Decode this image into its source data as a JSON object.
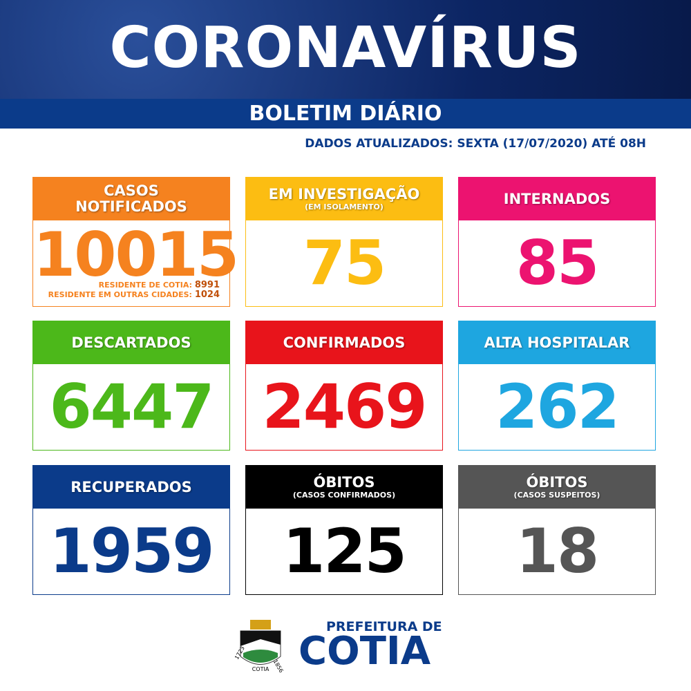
{
  "header": {
    "title": "CORONAVÍRUS",
    "subtitle": "BOLETIM DIÁRIO",
    "date": "DADOS ATUALIZADOS: SEXTA (17/07/2020) ATÉ 08H"
  },
  "cards": [
    {
      "title": "CASOS NOTIFICADOS",
      "value": "10015",
      "color": "#f5821f",
      "details": [
        {
          "label": "RESIDENTE DE COTIA:",
          "value": "8991"
        },
        {
          "label": "RESIDENTE EM OUTRAS CIDADES:",
          "value": "1024"
        }
      ]
    },
    {
      "title": "EM INVESTIGAÇÃO",
      "subtitle": "(EM ISOLAMENTO)",
      "value": "75",
      "color": "#fcbd12"
    },
    {
      "title": "INTERNADOS",
      "value": "85",
      "color": "#ec1370"
    },
    {
      "title": "DESCARTADOS",
      "value": "6447",
      "color": "#4cb81a"
    },
    {
      "title": "CONFIRMADOS",
      "value": "2469",
      "color": "#e8141b"
    },
    {
      "title": "ALTA HOSPITALAR",
      "value": "262",
      "color": "#1ea6e0"
    },
    {
      "title": "RECUPERADOS",
      "value": "1959",
      "color": "#0b3b8a"
    },
    {
      "title": "ÓBITOS",
      "subtitle": "(CASOS CONFIRMADOS)",
      "value": "125",
      "color": "#000000"
    },
    {
      "title": "ÓBITOS",
      "subtitle": "(CASOS SUSPEITOS)",
      "value": "18",
      "color": "#555555"
    }
  ],
  "footer": {
    "line1": "PREFEITURA DE",
    "line2": "COTIA",
    "crest": {
      "left": "1723",
      "right": "1856",
      "name": "COTIA"
    }
  }
}
